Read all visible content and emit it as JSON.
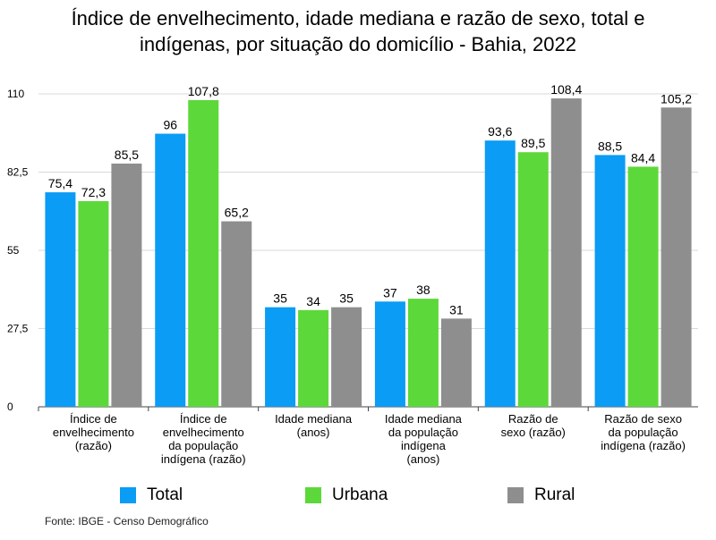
{
  "title_line1": "Índice de envelhecimento, idade mediana e razão de sexo, total e",
  "title_line2": "indígenas, por situação do domicílio - Bahia, 2022",
  "source": "Fonte: IBGE - Censo Demográfico",
  "colors": {
    "total": "#0b9cf5",
    "urbana": "#5dd83a",
    "rural": "#8e8e8e",
    "grid": "#d9d9d9",
    "axis": "#444444"
  },
  "chart_data": {
    "type": "bar",
    "categories": [
      [
        "Índice de",
        "envelhecimento",
        "(razão)"
      ],
      [
        "Índice de",
        "envelhecimento",
        "da população",
        "indígena (razão)"
      ],
      [
        "Idade mediana",
        "(anos)"
      ],
      [
        "Idade mediana",
        "da população",
        "indígena",
        "(anos)"
      ],
      [
        "Razão de",
        "sexo (razão)"
      ],
      [
        "Razão de sexo",
        "da população",
        "indígena (razão)"
      ]
    ],
    "series": [
      {
        "name": "Total",
        "values": [
          75.4,
          96,
          35,
          37,
          93.6,
          88.5
        ],
        "labels": [
          "75,4",
          "96",
          "35",
          "37",
          "93,6",
          "88,5"
        ]
      },
      {
        "name": "Urbana",
        "values": [
          72.3,
          107.8,
          34,
          38,
          89.5,
          84.4
        ],
        "labels": [
          "72,3",
          "107,8",
          "34",
          "38",
          "89,5",
          "84,4"
        ]
      },
      {
        "name": "Rural",
        "values": [
          85.5,
          65.2,
          35,
          31,
          108.4,
          105.2
        ],
        "labels": [
          "85,5",
          "65,2",
          "35",
          "31",
          "108,4",
          "105,2"
        ]
      }
    ],
    "yticks": [
      0,
      27.5,
      55,
      82.5,
      110
    ],
    "ytick_labels": [
      "0",
      "27,5",
      "55",
      "82,5",
      "110"
    ],
    "ylim": [
      0,
      110
    ],
    "grid": true,
    "legend": "bottom"
  }
}
